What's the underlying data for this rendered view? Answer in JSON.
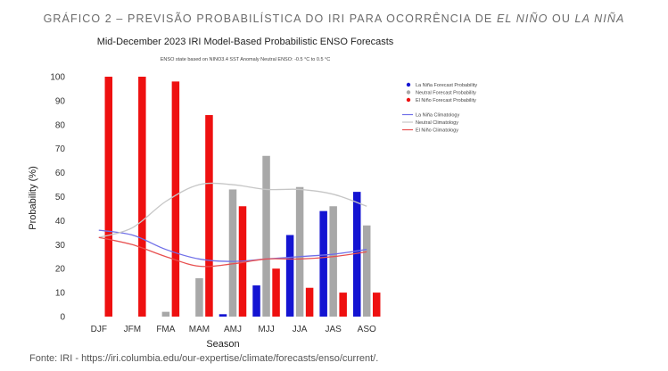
{
  "figure_heading": {
    "prefix": "GRÁFICO 2 – PREVISÃO PROBABILÍSTICA DO IRI PARA OCORRÊNCIA DE ",
    "term1": "EL NIÑO",
    "conj": " OU ",
    "term2": "LA NIÑA"
  },
  "source_note": "Fonte: IRI - https://iri.columbia.edu/our-expertise/climate/forecasts/enso/current/.",
  "chart_data": {
    "type": "bar",
    "title": "Mid-December 2023 IRI Model-Based Probabilistic ENSO Forecasts",
    "subtitle": "ENSO state based on NINO3.4 SST Anomaly Neutral ENSO: -0.5 °C to 0.5 °C",
    "xlabel": "Season",
    "ylabel": "Probability (%)",
    "ylim": [
      0,
      100
    ],
    "yticks": [
      0,
      10,
      20,
      30,
      40,
      50,
      60,
      70,
      80,
      90,
      100
    ],
    "grid": false,
    "legend_position": "right",
    "categories": [
      "DJF",
      "JFM",
      "FMA",
      "MAM",
      "AMJ",
      "MJJ",
      "JJA",
      "JAS",
      "ASO"
    ],
    "series": [
      {
        "name": "La Niña Forecast Probability",
        "kind": "bar",
        "color": "#1414d2",
        "values": [
          0,
          0,
          0,
          0,
          1,
          13,
          34,
          44,
          52
        ]
      },
      {
        "name": "Neutral Forecast Probability",
        "kind": "bar",
        "color": "#a8a8a8",
        "values": [
          0,
          0,
          2,
          16,
          53,
          67,
          54,
          46,
          38
        ]
      },
      {
        "name": "El Niño Forecast Probability",
        "kind": "bar",
        "color": "#ee1010",
        "values": [
          100,
          100,
          98,
          84,
          46,
          20,
          12,
          10,
          10
        ]
      },
      {
        "name": "La Niña Climatology",
        "kind": "line",
        "color": "#6f6fe8",
        "values": [
          36,
          34,
          28,
          24,
          23,
          24,
          25,
          26,
          28
        ]
      },
      {
        "name": "Neutral Climatology",
        "kind": "line",
        "color": "#c6c6c6",
        "values": [
          33,
          37,
          48,
          55,
          55,
          53,
          53,
          51,
          46
        ]
      },
      {
        "name": "El Niño Climatology",
        "kind": "line",
        "color": "#e85050",
        "values": [
          33,
          30,
          25,
          21,
          22,
          24,
          24,
          25,
          27
        ]
      }
    ]
  }
}
